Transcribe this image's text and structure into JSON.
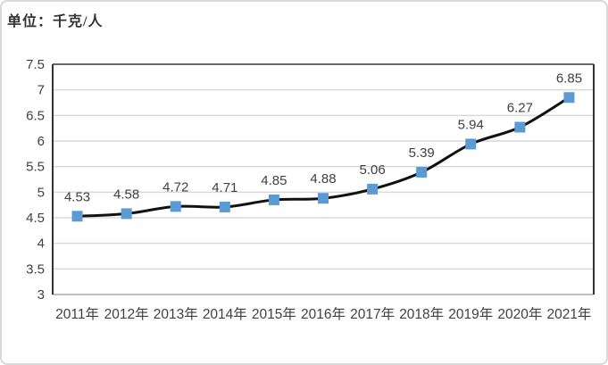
{
  "chart_data": {
    "type": "line",
    "title": "单位：千克/人",
    "categories": [
      "2011年",
      "2012年",
      "2013年",
      "2014年",
      "2015年",
      "2016年",
      "2017年",
      "2018年",
      "2019年",
      "2020年",
      "2021年"
    ],
    "values": [
      4.53,
      4.58,
      4.72,
      4.71,
      4.85,
      4.88,
      5.06,
      5.39,
      5.94,
      6.27,
      6.85
    ],
    "data_labels": [
      "4.53",
      "4.58",
      "4.72",
      "4.71",
      "4.85",
      "4.88",
      "5.06",
      "5.39",
      "5.94",
      "6.27",
      "6.85"
    ],
    "xlabel": "",
    "ylabel": "",
    "ylim": [
      3,
      7.5
    ],
    "y_ticks": {
      "step": 0.5,
      "labels": [
        "7.5",
        "7",
        "6.5",
        "6",
        "5.5",
        "5",
        "4.5",
        "4",
        "3.5",
        "3"
      ]
    },
    "grid": true,
    "legend": "none",
    "smoothed_line": true,
    "marker_shape": "square",
    "colors": {
      "line": "#111111",
      "marker": "#5b9bd5",
      "gridline": "#d9d9d9",
      "axis_text": "#404040",
      "data_label_text": "#404040",
      "plot_border": "#333333",
      "plot_bottom_border": "#bfbfbf",
      "frame_border": "#d9d9d9",
      "title_text": "#333333"
    }
  }
}
